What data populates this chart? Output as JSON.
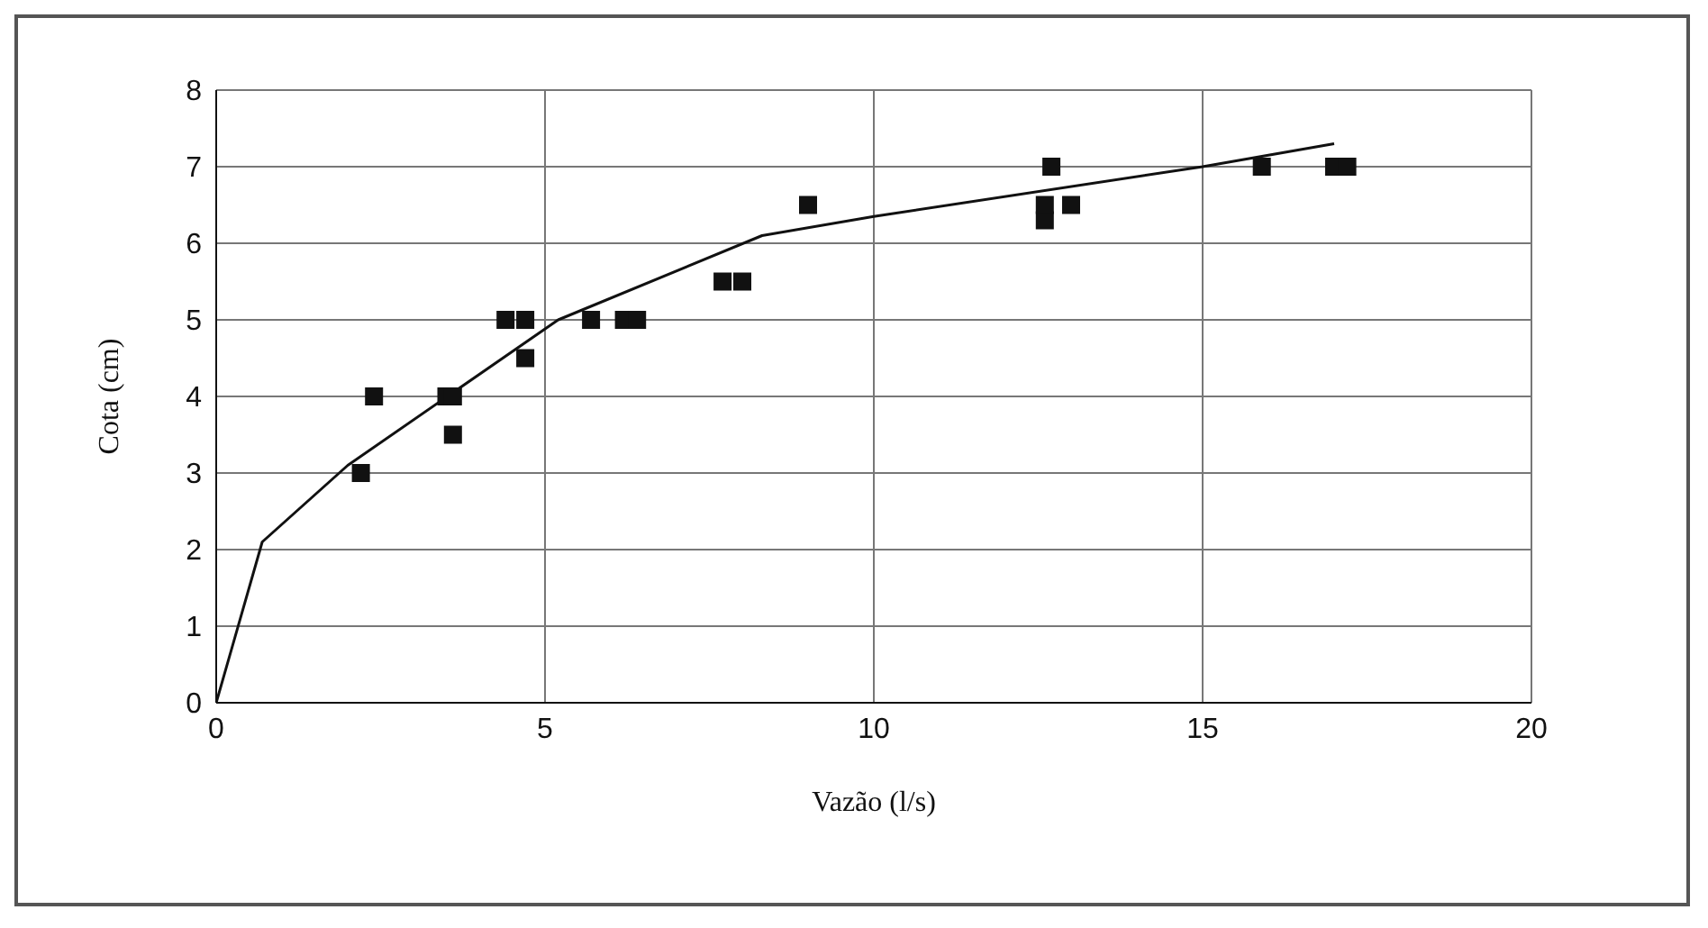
{
  "chart_data": {
    "type": "scatter",
    "xlabel": "Vazão  (l/s)",
    "ylabel": "Cota (cm)",
    "xlim": [
      0,
      20
    ],
    "xticks": [
      0,
      5,
      10,
      15,
      20
    ],
    "ylim": [
      0,
      8
    ],
    "yticks": [
      0,
      1,
      2,
      3,
      4,
      5,
      6,
      7,
      8
    ],
    "grid": true,
    "legend": false,
    "series": [
      {
        "marker": "square",
        "color": "#111111",
        "x": [
          2.2,
          2.4,
          3.5,
          3.6,
          3.6,
          4.4,
          4.7,
          4.7,
          5.7,
          6.2,
          6.4,
          7.7,
          8.0,
          9.0,
          12.6,
          12.6,
          12.7,
          13.0,
          15.9,
          17.0,
          17.2
        ],
        "values": [
          3,
          4,
          4,
          4,
          3.5,
          5,
          5,
          4.5,
          5,
          5,
          5,
          5.5,
          5.5,
          6.5,
          6.3,
          6.5,
          7,
          6.5,
          7,
          7,
          7
        ]
      },
      {
        "type": "line",
        "marker": "none",
        "color": "#111111",
        "x": [
          0,
          0.7,
          2,
          5.2,
          8.3,
          10,
          15,
          17
        ],
        "values": [
          0,
          2.1,
          3.1,
          5,
          6.1,
          6.35,
          7,
          7.3
        ]
      }
    ]
  }
}
